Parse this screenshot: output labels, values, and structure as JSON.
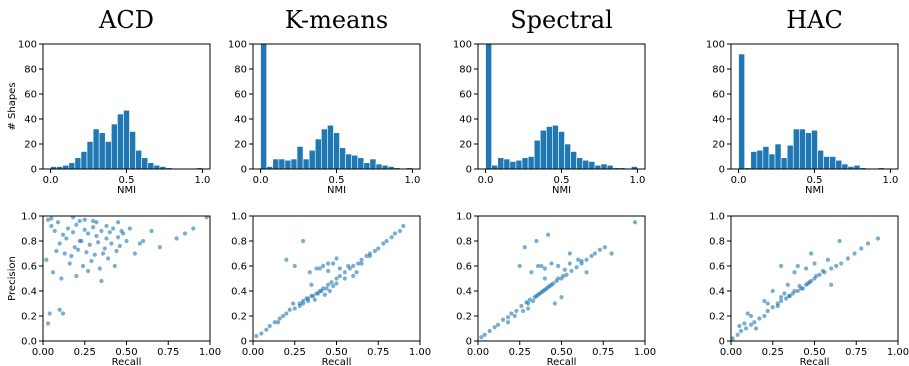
{
  "chart_data": [
    {
      "type": "bar",
      "title": "ACD",
      "xlabel": "NMI",
      "ylabel": "# Shapes",
      "xlim": [
        -0.05,
        1.05
      ],
      "ylim": [
        0,
        100
      ],
      "bin_width": 0.04,
      "xticks": [
        "0.0",
        "0.5",
        "1.0"
      ],
      "yticks": [
        "0",
        "20",
        "40",
        "60",
        "80",
        "100"
      ],
      "bins": [
        0.0,
        0.04,
        0.08,
        0.12,
        0.16,
        0.2,
        0.24,
        0.28,
        0.32,
        0.36,
        0.4,
        0.44,
        0.48,
        0.52,
        0.56,
        0.6,
        0.64,
        0.68,
        0.72,
        0.76,
        0.8,
        0.84,
        0.88,
        0.92,
        0.96
      ],
      "values": [
        2,
        2,
        3,
        5,
        9,
        14,
        22,
        32,
        29,
        22,
        36,
        44,
        47,
        30,
        15,
        9,
        5,
        3,
        2,
        1,
        0,
        0,
        0,
        0,
        1
      ]
    },
    {
      "type": "bar",
      "title": "K-means",
      "xlabel": "NMI",
      "ylabel": "",
      "xlim": [
        -0.05,
        1.05
      ],
      "ylim": [
        0,
        100
      ],
      "bin_width": 0.04,
      "xticks": [
        "0.0",
        "0.5",
        "1.0"
      ],
      "yticks": [
        "0",
        "20",
        "40",
        "60",
        "80",
        "100"
      ],
      "bins": [
        0.0,
        0.04,
        0.08,
        0.12,
        0.16,
        0.2,
        0.24,
        0.28,
        0.32,
        0.36,
        0.4,
        0.44,
        0.48,
        0.52,
        0.56,
        0.6,
        0.64,
        0.68,
        0.72,
        0.76,
        0.8,
        0.84,
        0.88,
        0.92,
        0.96
      ],
      "values": [
        100,
        2,
        8,
        8,
        7,
        8,
        18,
        8,
        15,
        24,
        32,
        35,
        29,
        17,
        12,
        11,
        9,
        5,
        8,
        4,
        3,
        2,
        1,
        0,
        1
      ]
    },
    {
      "type": "bar",
      "title": "Spectral",
      "xlabel": "NMI",
      "ylabel": "",
      "xlim": [
        -0.05,
        1.05
      ],
      "ylim": [
        0,
        100
      ],
      "bin_width": 0.04,
      "xticks": [
        "0.0",
        "0.5",
        "1.0"
      ],
      "yticks": [
        "0",
        "20",
        "40",
        "60",
        "80",
        "100"
      ],
      "bins": [
        0.0,
        0.04,
        0.08,
        0.12,
        0.16,
        0.2,
        0.24,
        0.28,
        0.32,
        0.36,
        0.4,
        0.44,
        0.48,
        0.52,
        0.56,
        0.6,
        0.64,
        0.68,
        0.72,
        0.76,
        0.8,
        0.84,
        0.88,
        0.92,
        0.96
      ],
      "values": [
        100,
        3,
        9,
        8,
        6,
        7,
        9,
        10,
        23,
        31,
        34,
        35,
        30,
        20,
        14,
        9,
        7,
        6,
        3,
        4,
        3,
        1,
        1,
        0,
        2
      ]
    },
    {
      "type": "bar",
      "title": "HAC",
      "xlabel": "NMI",
      "ylabel": "",
      "xlim": [
        -0.05,
        1.05
      ],
      "ylim": [
        0,
        100
      ],
      "bin_width": 0.04,
      "xticks": [
        "0.0",
        "0.5",
        "1.0"
      ],
      "yticks": [
        "0",
        "20",
        "40",
        "60",
        "80",
        "100"
      ],
      "bins": [
        0.0,
        0.04,
        0.08,
        0.12,
        0.16,
        0.2,
        0.24,
        0.28,
        0.32,
        0.36,
        0.4,
        0.44,
        0.48,
        0.52,
        0.56,
        0.6,
        0.64,
        0.68,
        0.72,
        0.76,
        0.8,
        0.84,
        0.88,
        0.92,
        0.96
      ],
      "values": [
        92,
        1,
        14,
        15,
        18,
        12,
        20,
        9,
        19,
        32,
        32,
        29,
        31,
        15,
        10,
        10,
        7,
        4,
        2,
        3,
        1,
        0,
        0,
        1,
        0
      ]
    },
    {
      "type": "scatter",
      "title": "",
      "xlabel": "Recall",
      "ylabel": "Precision",
      "xlim": [
        0,
        1
      ],
      "ylim": [
        0,
        1
      ],
      "xticks": [
        "0.00",
        "0.25",
        "0.50",
        "0.75",
        "1.00"
      ],
      "yticks": [
        "0.0",
        "0.2",
        "0.4",
        "0.6",
        "0.8",
        "1.0"
      ],
      "x": [
        0.05,
        0.07,
        0.09,
        0.12,
        0.15,
        0.18,
        0.2,
        0.22,
        0.25,
        0.27,
        0.3,
        0.32,
        0.35,
        0.38,
        0.4,
        0.42,
        0.45,
        0.48,
        0.5,
        0.1,
        0.14,
        0.19,
        0.23,
        0.28,
        0.33,
        0.37,
        0.41,
        0.46,
        0.08,
        0.13,
        0.17,
        0.21,
        0.26,
        0.31,
        0.36,
        0.39,
        0.44,
        0.16,
        0.24,
        0.29,
        0.34,
        0.43,
        0.06,
        0.11,
        0.2,
        0.27,
        0.35,
        0.02,
        0.03,
        0.04,
        0.6,
        0.65,
        0.7,
        0.55,
        0.8,
        0.85,
        0.9,
        0.98,
        0.1,
        0.12,
        0.25,
        0.3,
        0.45,
        0.52,
        0.58,
        0.03,
        0.05,
        0.18,
        0.22,
        0.32,
        0.38,
        0.47
      ],
      "y": [
        0.92,
        0.88,
        0.95,
        0.85,
        0.9,
        0.87,
        0.93,
        0.8,
        0.89,
        0.86,
        0.91,
        0.84,
        0.88,
        0.82,
        0.87,
        0.9,
        0.83,
        0.86,
        0.8,
        0.78,
        0.82,
        0.75,
        0.8,
        0.77,
        0.79,
        0.74,
        0.78,
        0.76,
        0.72,
        0.7,
        0.68,
        0.73,
        0.71,
        0.69,
        0.7,
        0.66,
        0.72,
        0.62,
        0.6,
        0.64,
        0.58,
        0.6,
        0.55,
        0.5,
        0.52,
        0.56,
        0.48,
        0.65,
        0.14,
        0.22,
        0.8,
        0.88,
        0.75,
        0.7,
        0.82,
        0.86,
        0.9,
        0.99,
        0.25,
        0.22,
        0.97,
        0.96,
        0.95,
        0.9,
        0.78,
        0.97,
        0.98,
        0.99,
        0.96,
        0.95,
        0.92,
        0.88
      ]
    },
    {
      "type": "scatter",
      "title": "",
      "xlabel": "Recall",
      "ylabel": "",
      "xlim": [
        0,
        1
      ],
      "ylim": [
        0,
        1
      ],
      "xticks": [
        "0.00",
        "0.25",
        "0.50",
        "0.75",
        "1.00"
      ],
      "yticks": [
        "0",
        "0.2",
        "0.4",
        "0.6",
        "0.8",
        "1.0"
      ],
      "x": [
        0.02,
        0.05,
        0.08,
        0.1,
        0.13,
        0.16,
        0.2,
        0.22,
        0.25,
        0.28,
        0.3,
        0.33,
        0.35,
        0.38,
        0.4,
        0.42,
        0.45,
        0.47,
        0.5,
        0.52,
        0.55,
        0.58,
        0.6,
        0.63,
        0.65,
        0.68,
        0.7,
        0.73,
        0.75,
        0.78,
        0.8,
        0.83,
        0.85,
        0.88,
        0.9,
        0.3,
        0.32,
        0.36,
        0.37,
        0.39,
        0.41,
        0.43,
        0.44,
        0.46,
        0.48,
        0.5,
        0.34,
        0.38,
        0.42,
        0.45,
        0.48,
        0.52,
        0.57,
        0.62,
        0.2,
        0.25,
        0.3,
        0.35,
        0.4,
        0.45,
        0.5,
        0.55,
        0.6,
        0.65,
        0.7,
        0.15,
        0.18,
        0.24,
        0.28,
        0.33
      ],
      "y": [
        0.04,
        0.06,
        0.09,
        0.12,
        0.15,
        0.18,
        0.22,
        0.25,
        0.26,
        0.3,
        0.32,
        0.34,
        0.36,
        0.38,
        0.4,
        0.42,
        0.45,
        0.47,
        0.5,
        0.52,
        0.55,
        0.58,
        0.6,
        0.62,
        0.65,
        0.68,
        0.7,
        0.72,
        0.74,
        0.78,
        0.8,
        0.83,
        0.86,
        0.88,
        0.92,
        0.3,
        0.34,
        0.36,
        0.33,
        0.38,
        0.4,
        0.37,
        0.42,
        0.4,
        0.44,
        0.46,
        0.55,
        0.58,
        0.6,
        0.56,
        0.62,
        0.58,
        0.6,
        0.55,
        0.65,
        0.6,
        0.8,
        0.45,
        0.58,
        0.62,
        0.66,
        0.5,
        0.52,
        0.62,
        0.68,
        0.15,
        0.2,
        0.3,
        0.28,
        0.32
      ]
    },
    {
      "type": "scatter",
      "title": "",
      "xlabel": "Recall",
      "ylabel": "",
      "xlim": [
        0,
        1
      ],
      "ylim": [
        0,
        1
      ],
      "xticks": [
        "0.00",
        "0.25",
        "0.50",
        "0.75",
        "1.00"
      ],
      "yticks": [
        "0",
        "0.2",
        "0.4",
        "0.6",
        "0.8",
        "1.0"
      ],
      "x": [
        0.02,
        0.04,
        0.07,
        0.1,
        0.12,
        0.15,
        0.18,
        0.2,
        0.23,
        0.26,
        0.29,
        0.31,
        0.34,
        0.36,
        0.38,
        0.4,
        0.42,
        0.44,
        0.47,
        0.5,
        0.53,
        0.56,
        0.59,
        0.62,
        0.65,
        0.68,
        0.7,
        0.73,
        0.76,
        0.94,
        0.3,
        0.33,
        0.35,
        0.37,
        0.39,
        0.41,
        0.43,
        0.45,
        0.48,
        0.51,
        0.32,
        0.36,
        0.4,
        0.44,
        0.48,
        0.52,
        0.55,
        0.62,
        0.25,
        0.28,
        0.35,
        0.42,
        0.55,
        0.6,
        0.38,
        0.3,
        0.46,
        0.5,
        0.65,
        0.4,
        0.18,
        0.22,
        0.27,
        0.8
      ],
      "y": [
        0.03,
        0.05,
        0.08,
        0.11,
        0.13,
        0.17,
        0.19,
        0.22,
        0.24,
        0.28,
        0.31,
        0.33,
        0.35,
        0.37,
        0.39,
        0.41,
        0.43,
        0.45,
        0.48,
        0.5,
        0.53,
        0.56,
        0.59,
        0.62,
        0.65,
        0.68,
        0.7,
        0.73,
        0.75,
        0.95,
        0.3,
        0.32,
        0.36,
        0.38,
        0.4,
        0.42,
        0.44,
        0.46,
        0.5,
        0.52,
        0.55,
        0.6,
        0.58,
        0.62,
        0.6,
        0.57,
        0.62,
        0.64,
        0.6,
        0.75,
        0.8,
        0.85,
        0.7,
        0.65,
        0.6,
        0.26,
        0.3,
        0.35,
        0.55,
        0.5,
        0.15,
        0.2,
        0.24,
        0.7
      ]
    },
    {
      "type": "scatter",
      "title": "",
      "xlabel": "Recall",
      "ylabel": "",
      "xlim": [
        0,
        1
      ],
      "ylim": [
        0,
        1
      ],
      "xticks": [
        "0.00",
        "0.25",
        "0.50",
        "0.75",
        "1.00"
      ],
      "yticks": [
        "0",
        "0.2",
        "0.4",
        "0.6",
        "0.8",
        "1.0"
      ],
      "x": [
        0.01,
        0.04,
        0.06,
        0.09,
        0.12,
        0.14,
        0.17,
        0.2,
        0.22,
        0.25,
        0.28,
        0.3,
        0.33,
        0.35,
        0.37,
        0.4,
        0.42,
        0.45,
        0.47,
        0.5,
        0.53,
        0.56,
        0.6,
        0.63,
        0.66,
        0.7,
        0.74,
        0.78,
        0.82,
        0.88,
        0.3,
        0.32,
        0.35,
        0.38,
        0.41,
        0.43,
        0.46,
        0.48,
        0.51,
        0.55,
        0.2,
        0.25,
        0.3,
        0.38,
        0.45,
        0.5,
        0.58,
        0.65,
        0.12,
        0.15,
        0.22,
        0.28,
        0.34,
        0.4,
        0.48,
        0.05,
        0.08,
        0.1,
        0.6
      ],
      "y": [
        0.02,
        0.05,
        0.08,
        0.1,
        0.13,
        0.15,
        0.18,
        0.2,
        0.24,
        0.27,
        0.3,
        0.32,
        0.34,
        0.36,
        0.38,
        0.4,
        0.42,
        0.45,
        0.47,
        0.5,
        0.53,
        0.55,
        0.58,
        0.6,
        0.62,
        0.66,
        0.7,
        0.74,
        0.78,
        0.82,
        0.35,
        0.38,
        0.36,
        0.4,
        0.44,
        0.42,
        0.46,
        0.48,
        0.52,
        0.56,
        0.32,
        0.4,
        0.6,
        0.55,
        0.58,
        0.62,
        0.65,
        0.8,
        0.2,
        0.1,
        0.3,
        0.28,
        0.45,
        0.6,
        0.7,
        0.12,
        0.14,
        0.22,
        0.45
      ]
    }
  ]
}
